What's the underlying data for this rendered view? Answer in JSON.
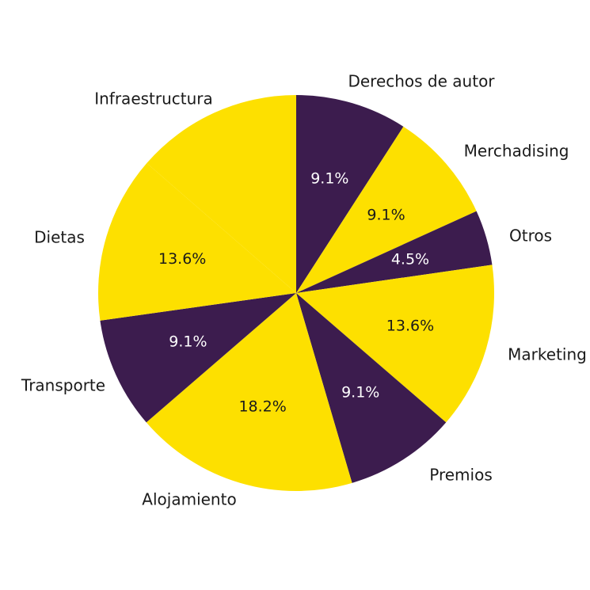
{
  "chart_data": {
    "type": "pie",
    "title": "",
    "start": "12 o'clock",
    "direction": "clockwise",
    "colors": {
      "dark": "#3c1c4e",
      "yellow": "#fde000",
      "label_text": "#1a1a1a",
      "pct_on_dark": "#ffffff",
      "pct_on_yellow": "#1a1a1a"
    },
    "slices": [
      {
        "label": "Derechos de autor",
        "value": 9.1,
        "display": "9.1%",
        "color": "dark"
      },
      {
        "label": "Merchadising",
        "value": 9.1,
        "display": "9.1%",
        "color": "yellow"
      },
      {
        "label": "Otros",
        "value": 4.5,
        "display": "4.5%",
        "color": "dark"
      },
      {
        "label": "Marketing",
        "value": 13.6,
        "display": "13.6%",
        "color": "yellow"
      },
      {
        "label": "Premios",
        "value": 9.1,
        "display": "9.1%",
        "color": "dark"
      },
      {
        "label": "Alojamiento",
        "value": 18.2,
        "display": "18.2%",
        "color": "yellow"
      },
      {
        "label": "Transporte",
        "value": 9.1,
        "display": "9.1%",
        "color": "dark"
      },
      {
        "label": "Dietas",
        "value": 13.6,
        "display": "13.6%",
        "color": "yellow"
      },
      {
        "label": "Infraestructura",
        "value": 13.6,
        "display": "",
        "color": "yellow"
      }
    ]
  }
}
